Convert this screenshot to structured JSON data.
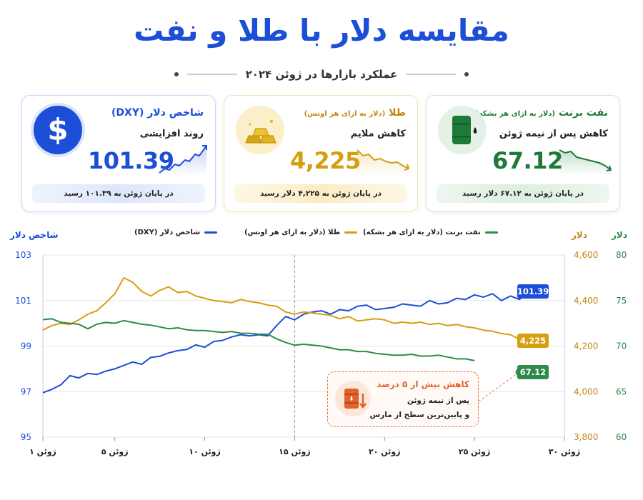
{
  "header": {
    "title": "مقایسه دلار با طلا و نفت",
    "subtitle": "عملکرد بازارها در ژوئن ۲۰۲۴"
  },
  "cards": {
    "dxy": {
      "title": "شاخص دلار (DXY)",
      "trend": "روند افزایشی",
      "value": "101.39",
      "footer": "در پایان ژوئن به ۱۰۱.۳۹ رسید",
      "color": "#1d4ed8",
      "icon": "dollar-sign-icon"
    },
    "gold": {
      "title": "طلا",
      "title_unit": "(دلار به ازای هر اونس)",
      "trend": "کاهش ملایم",
      "value": "4,225",
      "footer": "در پایان ژوئن به ۴,۲۲۵ دلار رسید",
      "color": "#d4a012",
      "icon": "gold-bars-icon"
    },
    "brent": {
      "title": "نفت برنت",
      "title_unit": "(دلار به ازای هر بشکه)",
      "trend": "کاهش پس از نیمه ژوئن",
      "value": "67.12",
      "footer": "در پایان ژوئن به ۶۷.۱۲ دلار رسید",
      "color": "#1f7a3a",
      "icon": "oil-barrel-icon"
    }
  },
  "annotation": {
    "title": "کاهش بیش از ۵ درصد",
    "line1": "پس از نیمه ژوئن",
    "line2": "و پایین‌ترین سطح از مارس",
    "icon": "oil-barrel-down-icon"
  },
  "chart_data": {
    "type": "line",
    "x_unit": "day of June 2024",
    "xlim": [
      1,
      30
    ],
    "x_ticks": [
      1,
      5,
      10,
      15,
      20,
      25,
      30
    ],
    "x_tick_labels": [
      "۱ ژوئن",
      "۵ ژوئن",
      "۱۰ ژوئن",
      "۱۵ ژوئن",
      "۲۰ ژوئن",
      "۲۵ ژوئن",
      "۳۰ ژوئن"
    ],
    "marker_x": 15,
    "axes": {
      "left": {
        "title": "شاخص دلار",
        "ylim": [
          95,
          103
        ],
        "ticks": [
          95,
          97,
          99,
          101,
          103
        ],
        "tick_labels": [
          "95",
          "97",
          "99",
          "101",
          "103"
        ],
        "color": "#1d4ed8"
      },
      "right_gold": {
        "title": "دلار",
        "ylim": [
          3800,
          4600
        ],
        "ticks": [
          3800,
          4000,
          4200,
          4400,
          4600
        ],
        "tick_labels": [
          "3,800",
          "4,000",
          "4,200",
          "4,400",
          "4,600"
        ],
        "color": "#c2860c"
      },
      "right_oil": {
        "title": "دلار",
        "ylim": [
          60,
          80
        ],
        "ticks": [
          60,
          65,
          70,
          75,
          80
        ],
        "tick_labels": [
          "60",
          "65",
          "70",
          "75",
          "80"
        ],
        "color": "#2e8b4a"
      }
    },
    "series": [
      {
        "name": "شاخص دلار (DXY)",
        "axis": "left",
        "color": "#1d4ed8",
        "end_label": "101.39",
        "x": [
          1,
          1.5,
          2,
          2.5,
          3,
          3.5,
          4,
          4.5,
          5,
          5.5,
          6,
          6.5,
          7,
          7.5,
          8,
          8.5,
          9,
          9.5,
          10,
          10.5,
          11,
          11.5,
          12,
          12.5,
          13,
          13.5,
          14,
          14.5,
          15,
          15.5,
          16,
          16.5,
          17,
          17.5,
          18,
          18.5,
          19,
          19.5,
          20,
          20.5,
          21,
          21.5,
          22,
          22.5,
          23,
          23.5,
          24,
          24.5,
          25,
          25.5,
          26,
          26.5,
          27,
          27.5,
          28
        ],
        "y": [
          96.95,
          97.1,
          97.3,
          97.7,
          97.6,
          97.8,
          97.75,
          97.9,
          98.0,
          98.15,
          98.3,
          98.2,
          98.5,
          98.55,
          98.7,
          98.8,
          98.85,
          99.05,
          98.95,
          99.2,
          99.25,
          99.4,
          99.5,
          99.45,
          99.5,
          99.45,
          99.9,
          100.3,
          100.15,
          100.4,
          100.5,
          100.55,
          100.4,
          100.6,
          100.55,
          100.75,
          100.8,
          100.6,
          100.65,
          100.7,
          100.85,
          100.8,
          100.75,
          101.0,
          100.85,
          100.9,
          101.1,
          101.05,
          101.25,
          101.15,
          101.3,
          101.0,
          101.2,
          101.05,
          101.39
        ]
      },
      {
        "name": "طلا (دلار به ازای هر اونس)",
        "legend_label": "طلا (دلار به ازای هر اونس)",
        "axis": "right_gold",
        "color": "#d4a012",
        "end_label": "4,225",
        "x": [
          1,
          1.5,
          2,
          2.5,
          3,
          3.5,
          4,
          4.5,
          5,
          5.5,
          6,
          6.5,
          7,
          7.5,
          8,
          8.5,
          9,
          9.5,
          10,
          10.5,
          11,
          11.5,
          12,
          12.5,
          13,
          13.5,
          14,
          14.5,
          15,
          15.5,
          16,
          16.5,
          17,
          17.5,
          18,
          18.5,
          19,
          19.5,
          20,
          20.5,
          21,
          21.5,
          22,
          22.5,
          23,
          23.5,
          24,
          24.5,
          25,
          25.5,
          26,
          26.5,
          27,
          27.5,
          28
        ],
        "y": [
          4270,
          4290,
          4300,
          4295,
          4315,
          4340,
          4355,
          4390,
          4430,
          4500,
          4480,
          4440,
          4420,
          4445,
          4460,
          4435,
          4440,
          4420,
          4410,
          4400,
          4395,
          4390,
          4405,
          4395,
          4390,
          4380,
          4375,
          4350,
          4340,
          4350,
          4345,
          4340,
          4335,
          4320,
          4330,
          4310,
          4315,
          4320,
          4315,
          4300,
          4305,
          4300,
          4305,
          4295,
          4300,
          4290,
          4295,
          4285,
          4280,
          4270,
          4265,
          4255,
          4250,
          4230,
          4225
        ]
      },
      {
        "name": "نفت برنت (دلار به ازای هر بشکه)",
        "axis": "right_oil",
        "color": "#2e8b4a",
        "end_label": "67.12",
        "x": [
          1,
          1.5,
          2,
          2.5,
          3,
          3.5,
          4,
          4.5,
          5,
          5.5,
          6,
          6.5,
          7,
          7.5,
          8,
          8.5,
          9,
          9.5,
          10,
          10.5,
          11,
          11.5,
          12,
          12.5,
          13,
          13.5,
          14,
          14.5,
          15,
          15.5,
          16,
          16.5,
          17,
          17.5,
          18,
          18.5,
          19,
          19.5,
          20,
          20.5,
          21,
          21.5,
          22,
          22.5,
          23,
          23.5,
          24,
          24.5,
          25
        ],
        "y": [
          72.9,
          73.0,
          72.6,
          72.5,
          72.4,
          71.9,
          72.4,
          72.6,
          72.5,
          72.8,
          72.6,
          72.4,
          72.3,
          72.1,
          71.9,
          72.0,
          71.8,
          71.7,
          71.7,
          71.6,
          71.5,
          71.6,
          71.4,
          71.4,
          71.3,
          71.3,
          70.8,
          70.4,
          70.1,
          70.2,
          70.1,
          70.0,
          69.8,
          69.6,
          69.6,
          69.4,
          69.4,
          69.2,
          69.1,
          69.0,
          69.0,
          69.1,
          68.9,
          68.9,
          69.0,
          68.8,
          68.6,
          68.6,
          68.4
        ]
      }
    ],
    "oil_end": {
      "x": 27.5,
      "y": 67.12
    }
  }
}
